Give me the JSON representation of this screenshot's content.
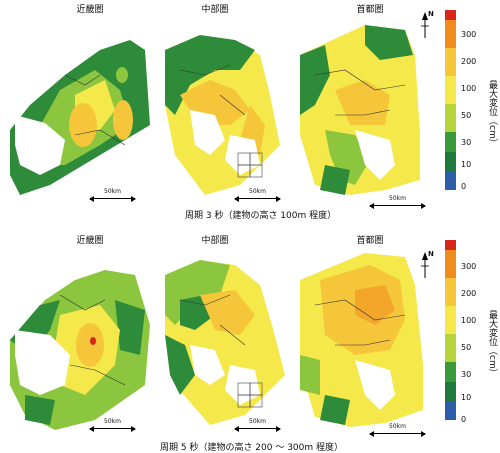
{
  "rows": [
    {
      "caption": "周期 3 秒（建物の高さ 100m 程度）",
      "maps": [
        {
          "title": "近畿圏",
          "scale": "50km"
        },
        {
          "title": "中部圏",
          "scale": "50km"
        },
        {
          "title": "首都圏",
          "scale": "50km"
        }
      ]
    },
    {
      "caption": "周期 5 秒（建物の高さ 200 ～ 300m 程度）",
      "maps": [
        {
          "title": "近畿圏",
          "scale": "50km"
        },
        {
          "title": "中部圏",
          "scale": "50km"
        },
        {
          "title": "首都圏",
          "scale": "50km"
        }
      ]
    }
  ],
  "legend": {
    "title": "最大変位（cm）",
    "ticks": [
      "300",
      "200",
      "100",
      "50",
      "30",
      "10",
      "0"
    ],
    "north": "N",
    "colors": [
      "#d9261c",
      "#f08c1e",
      "#f5c63a",
      "#f4e84a",
      "#b6d43c",
      "#3a9a3a",
      "#1e7a3c",
      "#2d5fa8"
    ]
  }
}
